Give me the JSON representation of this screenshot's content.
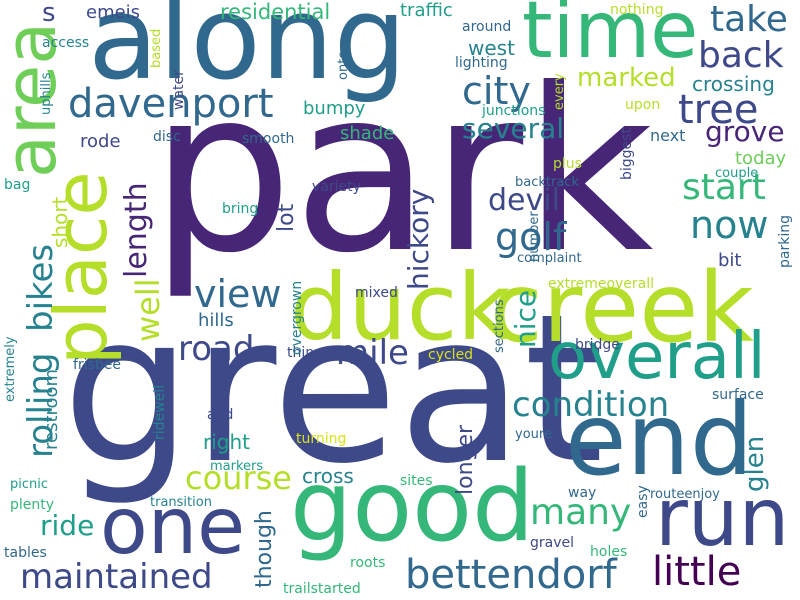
{
  "palette": {
    "dark_purple": "#440154",
    "purple": "#482677",
    "indigo": "#3e4989",
    "blue": "#31688e",
    "teal_blue": "#26828e",
    "teal": "#1f9e89",
    "green": "#35b779",
    "light_green": "#6ece58",
    "lime": "#b5de2b",
    "yellow_green": "#d8e219"
  },
  "words": {
    "park": "park",
    "great": "great",
    "along": "along",
    "duck": "duck",
    "creek": "creek",
    "good": "good",
    "end": "end",
    "time": "time",
    "area": "area",
    "place": "place",
    "one": "one",
    "run": "run",
    "overall": "overall",
    "davenport": "davenport",
    "bettendorf": "bettendorf",
    "little": "little",
    "maintained": "maintained",
    "condition": "condition",
    "course": "course",
    "view": "view",
    "many": "many",
    "take": "take",
    "back": "back",
    "tree": "tree",
    "city": "city",
    "start": "start",
    "now": "now",
    "golf": "golf",
    "road": "road",
    "mile": "mile",
    "grove": "grove",
    "several": "several",
    "devil": "devil",
    "marked": "marked",
    "hickory": "hickory",
    "rolling": "rolling",
    "bikes": "bikes",
    "length": "length",
    "well": "well",
    "nice": "nice",
    "glen": "glen",
    "ride": "ride",
    "residential": "residential",
    "s": "s",
    "emeis": "emeis",
    "traffic": "traffic",
    "west": "west",
    "crossing": "crossing",
    "bumpy": "bumpy",
    "shade": "shade",
    "today": "today",
    "short": "short",
    "lot": "lot",
    "hills": "hills",
    "bit": "bit",
    "right": "right",
    "cross": "cross",
    "though": "though",
    "longer": "longer",
    "restroom": "restroom",
    "next": "next",
    "rode": "rode",
    "disc": "disc",
    "smooth": "smooth",
    "lighting": "lighting",
    "around": "around",
    "nothing": "nothing",
    "access": "access",
    "based": "based",
    "water": "water",
    "uphills": "uphills",
    "onto": "onto",
    "junctions": "junctions",
    "every": "every",
    "upon": "upon",
    "biggest": "biggest",
    "plus": "plus",
    "couple": "couple",
    "parking": "parking",
    "variety": "variety",
    "bring": "bring",
    "overgrown": "overgrown",
    "complaint": "complaint",
    "backtrack": "backtrack",
    "extremeoverall": "extremeoverall",
    "number": "number",
    "mixed": "mixed",
    "bag": "bag",
    "extremely": "extremely",
    "frisbee": "frisbee",
    "thing": "thing",
    "cycled": "cycled",
    "sections": "sections",
    "bridge": "bridge",
    "ridewell": "ridewell",
    "add": "add",
    "turning": "turning",
    "markers": "markers",
    "picnic": "picnic",
    "plenty": "plenty",
    "transition": "transition",
    "sites": "sites",
    "tables": "tables",
    "roots": "roots",
    "trailstarted": "trailstarted",
    "gravel": "gravel",
    "easy": "easy",
    "holes": "holes",
    "way": "way",
    "routeenjoy": "routeenjoy",
    "surface": "surface",
    "youre": "youre"
  }
}
